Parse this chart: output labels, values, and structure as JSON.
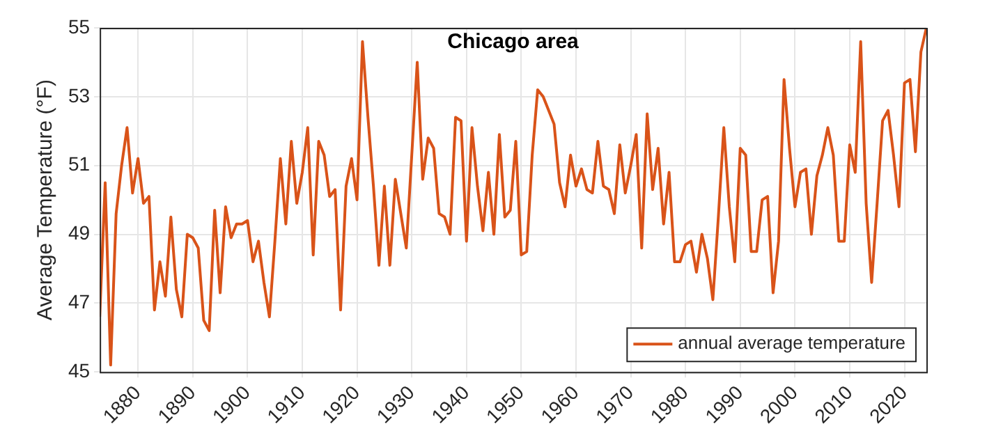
{
  "chart_data": {
    "type": "line",
    "title": "Chicago area",
    "ylabel": "Average Temperature (°F)",
    "x": [
      1873,
      1874,
      1875,
      1876,
      1877,
      1878,
      1879,
      1880,
      1881,
      1882,
      1883,
      1884,
      1885,
      1886,
      1887,
      1888,
      1889,
      1890,
      1891,
      1892,
      1893,
      1894,
      1895,
      1896,
      1897,
      1898,
      1899,
      1900,
      1901,
      1902,
      1903,
      1904,
      1905,
      1906,
      1907,
      1908,
      1909,
      1910,
      1911,
      1912,
      1913,
      1914,
      1915,
      1916,
      1917,
      1918,
      1919,
      1920,
      1921,
      1922,
      1923,
      1924,
      1925,
      1926,
      1927,
      1928,
      1929,
      1930,
      1931,
      1932,
      1933,
      1934,
      1935,
      1936,
      1937,
      1938,
      1939,
      1940,
      1941,
      1942,
      1943,
      1944,
      1945,
      1946,
      1947,
      1948,
      1949,
      1950,
      1951,
      1952,
      1953,
      1954,
      1955,
      1956,
      1957,
      1958,
      1959,
      1960,
      1961,
      1962,
      1963,
      1964,
      1965,
      1966,
      1967,
      1968,
      1969,
      1970,
      1971,
      1972,
      1973,
      1974,
      1975,
      1976,
      1977,
      1978,
      1979,
      1980,
      1981,
      1982,
      1983,
      1984,
      1985,
      1986,
      1987,
      1988,
      1989,
      1990,
      1991,
      1992,
      1993,
      1994,
      1995,
      1996,
      1997,
      1998,
      1999,
      2000,
      2001,
      2002,
      2003,
      2004,
      2005,
      2006,
      2007,
      2008,
      2009,
      2010,
      2011,
      2012,
      2013,
      2014,
      2015,
      2016,
      2017,
      2018,
      2019,
      2020,
      2021,
      2022,
      2023,
      2024
    ],
    "series": [
      {
        "name": "annual average temperature",
        "color": "#d95319",
        "values": [
          46.6,
          50.5,
          45.2,
          49.6,
          51.0,
          52.1,
          50.2,
          51.2,
          49.9,
          50.1,
          46.8,
          48.2,
          47.2,
          49.5,
          47.4,
          46.6,
          49.0,
          48.9,
          48.6,
          46.5,
          46.2,
          49.7,
          47.3,
          49.8,
          48.9,
          49.3,
          49.3,
          49.4,
          48.2,
          48.8,
          47.6,
          46.6,
          48.8,
          51.2,
          49.3,
          51.7,
          49.9,
          50.8,
          52.1,
          48.4,
          51.7,
          51.3,
          50.1,
          50.3,
          46.8,
          50.4,
          51.2,
          50.0,
          54.6,
          52.4,
          50.4,
          48.1,
          50.4,
          48.1,
          50.6,
          49.6,
          48.6,
          51.3,
          54.0,
          50.6,
          51.8,
          51.5,
          49.6,
          49.5,
          49.0,
          52.4,
          52.3,
          48.8,
          52.1,
          50.4,
          49.1,
          50.8,
          49.0,
          51.9,
          49.5,
          49.7,
          51.7,
          48.4,
          48.5,
          51.3,
          53.2,
          53.0,
          52.6,
          52.2,
          50.5,
          49.8,
          51.3,
          50.4,
          50.9,
          50.3,
          50.2,
          51.7,
          50.4,
          50.3,
          49.6,
          51.6,
          50.2,
          51.0,
          51.9,
          48.6,
          52.5,
          50.3,
          51.5,
          49.3,
          50.8,
          48.2,
          48.2,
          48.7,
          48.8,
          47.9,
          49.0,
          48.3,
          47.1,
          49.5,
          52.1,
          49.8,
          48.2,
          51.5,
          51.3,
          48.5,
          48.5,
          50.0,
          50.1,
          47.3,
          48.8,
          53.5,
          51.5,
          49.8,
          50.8,
          50.9,
          49.0,
          50.7,
          51.3,
          52.1,
          51.3,
          48.8,
          48.8,
          51.6,
          50.8,
          54.6,
          49.9,
          47.6,
          49.9,
          52.3,
          52.6,
          51.3,
          49.8,
          53.4,
          53.5,
          51.4,
          54.3,
          55.0
        ]
      }
    ],
    "xlim": [
      1873,
      2024
    ],
    "xticks": [
      1880,
      1890,
      1900,
      1910,
      1920,
      1930,
      1940,
      1950,
      1960,
      1970,
      1980,
      1990,
      2000,
      2010,
      2020
    ],
    "ylim": [
      45,
      55
    ],
    "yticks": [
      45,
      47,
      49,
      51,
      53,
      55
    ],
    "grid": true,
    "legend": "bottom right"
  }
}
